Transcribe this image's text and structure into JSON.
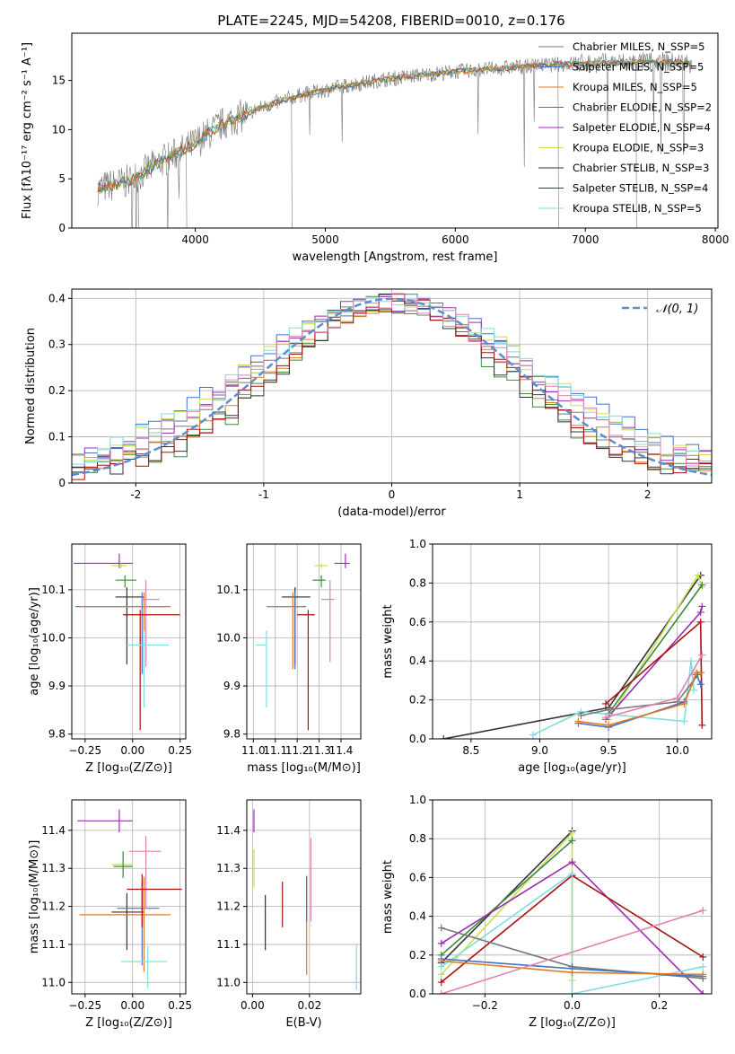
{
  "colors": {
    "chabrier_miles": "#777777",
    "salpeter_miles": "#4472c4",
    "kroupa_miles": "#e07a20",
    "chabrier_elodie": "#3c8a3c",
    "salpeter_elodie": "#9a2bb0",
    "kroupa_elodie": "#c8e050",
    "chabrier_stelib": "#333333",
    "salpeter_stelib": "#aa1010",
    "kroupa_stelib": "#80dde0",
    "pink": "#e080b0",
    "gaussian": "#5b8dd6"
  },
  "chart_data": [
    {
      "id": "spectrum",
      "type": "line",
      "title": "PLATE=2245, MJD=54208, FIBERID=0010, z=0.176",
      "xlabel": "wavelength [Angstrom, rest frame]",
      "ylabel": "Flux [fλ10⁻¹⁷ erg cm⁻² s⁻¹ A⁻¹]",
      "xlim": [
        3050,
        8020
      ],
      "ylim": [
        0,
        19.8
      ],
      "xticks": [
        4000,
        5000,
        6000,
        7000,
        8000
      ],
      "yticks": [
        0,
        5,
        10,
        15
      ],
      "data_range": [
        3250,
        7820
      ],
      "continuum": {
        "x": [
          3250,
          3500,
          3700,
          3950,
          4200,
          4500,
          4800,
          5100,
          5400,
          5700,
          6000,
          6300,
          6600,
          6900,
          7200,
          7500,
          7820
        ],
        "y": [
          4.0,
          4.8,
          6.5,
          8.2,
          10.5,
          12.2,
          13.5,
          14.3,
          15.0,
          15.5,
          15.9,
          16.2,
          16.5,
          16.7,
          16.8,
          16.9,
          16.8
        ]
      },
      "legend_position": "top-right",
      "legend": [
        {
          "label": "Chabrier MILES, N_SSP=5",
          "color_key": "chabrier_miles"
        },
        {
          "label": "Salpeter MILES, N_SSP=5",
          "color_key": "salpeter_miles"
        },
        {
          "label": "Kroupa MILES, N_SSP=5",
          "color_key": "kroupa_miles"
        },
        {
          "label": "Chabrier ELODIE, N_SSP=2",
          "color_key": "chabrier_elodie"
        },
        {
          "label": "Salpeter ELODIE, N_SSP=4",
          "color_key": "salpeter_elodie"
        },
        {
          "label": "Kroupa ELODIE, N_SSP=3",
          "color_key": "kroupa_elodie"
        },
        {
          "label": "Chabrier STELIB, N_SSP=3",
          "color_key": "chabrier_stelib"
        },
        {
          "label": "Salpeter STELIB, N_SSP=4",
          "color_key": "salpeter_stelib"
        },
        {
          "label": "Kroupa STELIB, N_SSP=5",
          "color_key": "kroupa_stelib"
        }
      ]
    },
    {
      "id": "residuals",
      "type": "line",
      "xlabel": "(data-model)/error",
      "ylabel": "Normed distribution",
      "xlim": [
        -2.5,
        2.5
      ],
      "ylim": [
        0,
        0.42
      ],
      "xticks": [
        -2,
        -1,
        0,
        1,
        2
      ],
      "yticks": [
        0.0,
        0.1,
        0.2,
        0.3,
        0.4
      ],
      "bin_width": 0.1,
      "gaussian_label": "𝒩(0, 1)",
      "series_colors": [
        "chabrier_miles",
        "salpeter_miles",
        "kroupa_miles",
        "chabrier_elodie",
        "salpeter_elodie",
        "kroupa_elodie",
        "chabrier_stelib",
        "salpeter_stelib",
        "kroupa_stelib",
        "pink"
      ]
    },
    {
      "id": "age_vs_Z",
      "type": "scatter",
      "xlabel": "Z [log₁₀(Z/Z⊙)]",
      "ylabel": "age  [log₁₀(age/yr)]",
      "xlim": [
        -0.32,
        0.28
      ],
      "ylim": [
        9.79,
        10.195
      ],
      "xticks": [
        -0.25,
        0.0,
        0.25
      ],
      "xticklabels": [
        "−0.25",
        "0.00",
        "0.25"
      ],
      "yticks": [
        9.8,
        9.9,
        10.0,
        10.1
      ],
      "yticklabels": [
        "9.8",
        "9.9",
        "10.0",
        "10.1"
      ],
      "points": [
        {
          "x": -0.07,
          "xerr": [
            0.24,
            0.07
          ],
          "y": 10.155,
          "yerr": [
            0.01,
            0.02
          ],
          "color_key": "salpeter_elodie"
        },
        {
          "x": -0.06,
          "xerr": [
            0.05,
            0.03
          ],
          "y": 10.15,
          "yerr": [
            0.005,
            0.005
          ],
          "color_key": "kroupa_elodie"
        },
        {
          "x": -0.04,
          "xerr": [
            0.05,
            0.06
          ],
          "y": 10.12,
          "yerr": [
            0.015,
            0.01
          ],
          "color_key": "chabrier_elodie"
        },
        {
          "x": -0.03,
          "xerr": [
            0.06,
            0.09
          ],
          "y": 10.085,
          "yerr": [
            0.14,
            0.02
          ],
          "color_key": "chabrier_stelib"
        },
        {
          "x": 0.05,
          "xerr": [
            0.35,
            0.14
          ],
          "y": 10.065,
          "yerr": [
            0.14,
            0.03
          ],
          "color_key": "salpeter_miles"
        },
        {
          "x": 0.06,
          "xerr": [
            0.34,
            0.14
          ],
          "y": 10.065,
          "yerr": [
            0.14,
            0.03
          ],
          "color_key": "kroupa_miles"
        },
        {
          "x": 0.07,
          "xerr": [
            0.02,
            0.07
          ],
          "y": 10.08,
          "yerr": [
            0.14,
            0.04
          ],
          "color_key": "pink"
        },
        {
          "x": 0.04,
          "xerr": [
            0.09,
            0.21
          ],
          "y": 10.048,
          "yerr": [
            0.24,
            0.01
          ],
          "color_key": "salpeter_stelib"
        },
        {
          "x": 0.06,
          "xerr": [
            0.09,
            0.13
          ],
          "y": 9.985,
          "yerr": [
            0.13,
            0.03
          ],
          "color_key": "kroupa_stelib"
        }
      ]
    },
    {
      "id": "age_vs_mass",
      "type": "scatter",
      "xlabel": "mass [log₁₀(M/M⊙)]",
      "ylabel": "",
      "xlim": [
        10.97,
        11.49
      ],
      "ylim": [
        9.79,
        10.195
      ],
      "xticks": [
        11.0,
        11.1,
        11.2,
        11.3,
        11.4
      ],
      "xticklabels": [
        "11.0",
        "11.1",
        "11.2",
        "11.3",
        "11.4"
      ],
      "yticks": [
        9.8,
        9.9,
        10.0,
        10.1
      ],
      "yticklabels": [
        "9.8",
        "9.9",
        "10.0",
        "10.1"
      ],
      "points": [
        {
          "x": 11.42,
          "xerr": [
            0.05,
            0.02
          ],
          "y": 10.155,
          "yerr": [
            0.01,
            0.02
          ],
          "color_key": "salpeter_elodie"
        },
        {
          "x": 11.31,
          "xerr": [
            0.03,
            0.03
          ],
          "y": 10.15,
          "yerr": [
            0.005,
            0.005
          ],
          "color_key": "kroupa_elodie"
        },
        {
          "x": 11.31,
          "xerr": [
            0.04,
            0.02
          ],
          "y": 10.12,
          "yerr": [
            0.015,
            0.01
          ],
          "color_key": "chabrier_elodie"
        },
        {
          "x": 11.19,
          "xerr": [
            0.06,
            0.07
          ],
          "y": 10.085,
          "yerr": [
            0.14,
            0.02
          ],
          "color_key": "chabrier_stelib"
        },
        {
          "x": 11.19,
          "xerr": [
            0.12,
            0.05
          ],
          "y": 10.065,
          "yerr": [
            0.13,
            0.03
          ],
          "color_key": "salpeter_miles"
        },
        {
          "x": 11.18,
          "xerr": [
            0.12,
            0.05
          ],
          "y": 10.065,
          "yerr": [
            0.13,
            0.03
          ],
          "color_key": "kroupa_miles"
        },
        {
          "x": 11.35,
          "xerr": [
            0.04,
            0.02
          ],
          "y": 10.08,
          "yerr": [
            0.13,
            0.04
          ],
          "color_key": "pink"
        },
        {
          "x": 11.25,
          "xerr": [
            0.05,
            0.03
          ],
          "y": 10.048,
          "yerr": [
            0.24,
            0.01
          ],
          "color_key": "salpeter_stelib"
        },
        {
          "x": 11.06,
          "xerr": [
            0.05,
            0.0
          ],
          "y": 9.985,
          "yerr": [
            0.13,
            0.03
          ],
          "color_key": "kroupa_stelib"
        }
      ]
    },
    {
      "id": "weight_vs_age",
      "type": "line",
      "xlabel": "age  [log₁₀(age/yr)]",
      "ylabel": "mass weight",
      "xlim": [
        8.22,
        10.25
      ],
      "ylim": [
        0,
        1.0
      ],
      "xticks": [
        8.5,
        9.0,
        9.5,
        10.0
      ],
      "xticklabels": [
        "8.5",
        "9.0",
        "9.5",
        "10.0"
      ],
      "yticks": [
        0,
        0.2,
        0.4,
        0.6,
        0.8,
        1.0
      ],
      "yticklabels": [
        "0.0",
        "0.2",
        "0.4",
        "0.6",
        "0.8",
        "1.0"
      ],
      "series": [
        {
          "color_key": "chabrier_stelib",
          "x": [
            8.3,
            9.5,
            10.17
          ],
          "y": [
            0.0,
            0.16,
            0.84
          ]
        },
        {
          "color_key": "kroupa_elodie",
          "x": [
            9.5,
            10.15,
            10.18
          ],
          "y": [
            0.1,
            0.84,
            0.78
          ]
        },
        {
          "color_key": "chabrier_elodie",
          "x": [
            9.5,
            10.18
          ],
          "y": [
            0.13,
            0.79
          ]
        },
        {
          "color_key": "salpeter_elodie",
          "x": [
            9.48,
            10.17,
            10.18
          ],
          "y": [
            0.1,
            0.65,
            0.68
          ]
        },
        {
          "color_key": "salpeter_stelib",
          "x": [
            9.48,
            10.17,
            10.18
          ],
          "y": [
            0.18,
            0.6,
            0.07
          ]
        },
        {
          "color_key": "kroupa_stelib",
          "x": [
            8.95,
            9.3,
            10.05,
            10.1,
            10.12
          ],
          "y": [
            0.02,
            0.14,
            0.09,
            0.4,
            0.25
          ]
        },
        {
          "color_key": "chabrier_miles",
          "x": [
            9.3,
            9.5,
            10.0,
            10.15
          ],
          "y": [
            0.12,
            0.15,
            0.19,
            0.33
          ]
        },
        {
          "color_key": "salpeter_miles",
          "x": [
            9.28,
            9.5,
            10.05,
            10.14,
            10.17
          ],
          "y": [
            0.08,
            0.06,
            0.19,
            0.33,
            0.28
          ]
        },
        {
          "color_key": "kroupa_miles",
          "x": [
            9.28,
            9.5,
            10.05,
            10.14,
            10.17
          ],
          "y": [
            0.09,
            0.07,
            0.18,
            0.34,
            0.34
          ]
        },
        {
          "color_key": "pink",
          "x": [
            9.48,
            10.0,
            10.18
          ],
          "y": [
            0.11,
            0.21,
            0.43
          ]
        }
      ]
    },
    {
      "id": "mass_vs_Z",
      "type": "scatter",
      "xlabel": "Z [log₁₀(Z/Z⊙)]",
      "ylabel": "mass [log₁₀(M/M⊙)]",
      "xlim": [
        -0.32,
        0.28
      ],
      "ylim": [
        10.97,
        11.48
      ],
      "xticks": [
        -0.25,
        0.0,
        0.25
      ],
      "xticklabels": [
        "−0.25",
        "0.00",
        "0.25"
      ],
      "yticks": [
        11.0,
        11.1,
        11.2,
        11.3,
        11.4
      ],
      "yticklabels": [
        "11.0",
        "11.1",
        "11.2",
        "11.3",
        "11.4"
      ],
      "points": [
        {
          "x": -0.07,
          "xerr": [
            0.22,
            0.07
          ],
          "y": 11.425,
          "yerr": [
            0.03,
            0.03
          ],
          "color_key": "salpeter_elodie"
        },
        {
          "x": -0.05,
          "xerr": [
            0.06,
            0.05
          ],
          "y": 11.31,
          "yerr": [
            0.03,
            0.03
          ],
          "color_key": "kroupa_elodie"
        },
        {
          "x": -0.05,
          "xerr": [
            0.05,
            0.05
          ],
          "y": 11.305,
          "yerr": [
            0.03,
            0.04
          ],
          "color_key": "chabrier_elodie"
        },
        {
          "x": -0.03,
          "xerr": [
            0.08,
            0.09
          ],
          "y": 11.185,
          "yerr": [
            0.1,
            0.05
          ],
          "color_key": "chabrier_stelib"
        },
        {
          "x": 0.05,
          "xerr": [
            0.13,
            0.09
          ],
          "y": 11.195,
          "yerr": [
            0.15,
            0.07
          ],
          "color_key": "salpeter_miles"
        },
        {
          "x": 0.06,
          "xerr": [
            0.34,
            0.14
          ],
          "y": 11.178,
          "yerr": [
            0.15,
            0.1
          ],
          "color_key": "kroupa_miles"
        },
        {
          "x": 0.07,
          "xerr": [
            0.09,
            0.08
          ],
          "y": 11.345,
          "yerr": [
            0.15,
            0.04
          ],
          "color_key": "pink"
        },
        {
          "x": 0.05,
          "xerr": [
            0.08,
            0.21
          ],
          "y": 11.245,
          "yerr": [
            0.1,
            0.04
          ],
          "color_key": "salpeter_stelib"
        },
        {
          "x": 0.08,
          "xerr": [
            0.14,
            0.1
          ],
          "y": 11.055,
          "yerr": [
            0.07,
            0.04
          ],
          "color_key": "kroupa_stelib"
        }
      ]
    },
    {
      "id": "mass_vs_ebv",
      "type": "scatter",
      "xlabel": "E(B-V)",
      "ylabel": "",
      "xlim": [
        -0.002,
        0.038
      ],
      "ylim": [
        10.97,
        11.48
      ],
      "xticks": [
        0.0,
        0.02
      ],
      "xticklabels": [
        "0.00",
        "0.02"
      ],
      "yticks": [
        11.0,
        11.1,
        11.2,
        11.3,
        11.4
      ],
      "yticklabels": [
        "11.0",
        "11.1",
        "11.2",
        "11.3",
        "11.4"
      ],
      "points": [
        {
          "x": 0.0005,
          "y": 11.425,
          "yerr": [
            0.03,
            0.03
          ],
          "color_key": "salpeter_elodie"
        },
        {
          "x": 0.0005,
          "y": 11.31,
          "yerr": [
            0.06,
            0.04
          ],
          "color_key": "kroupa_elodie"
        },
        {
          "x": 0.0045,
          "y": 11.155,
          "yerr": [
            0.07,
            0.075
          ],
          "color_key": "chabrier_stelib"
        },
        {
          "x": 0.0105,
          "y": 11.205,
          "yerr": [
            0.06,
            0.06
          ],
          "color_key": "salpeter_stelib"
        },
        {
          "x": 0.019,
          "y": 11.15,
          "yerr": [
            0.13,
            0.13
          ],
          "color_key": "kroupa_miles"
        },
        {
          "x": 0.019,
          "y": 11.22,
          "yerr": [
            0.06,
            0.06
          ],
          "color_key": "salpeter_miles"
        },
        {
          "x": 0.0205,
          "y": 11.27,
          "yerr": [
            0.11,
            0.11
          ],
          "color_key": "pink"
        },
        {
          "x": 0.0365,
          "y": 11.04,
          "yerr": [
            0.06,
            0.06
          ],
          "color_key": "kroupa_stelib"
        }
      ]
    },
    {
      "id": "weight_vs_Z",
      "type": "line",
      "xlabel": "Z [log₁₀(Z/Z⊙)]",
      "ylabel": "mass weight",
      "xlim": [
        -0.32,
        0.32
      ],
      "ylim": [
        0,
        1.0
      ],
      "xticks": [
        -0.2,
        0.0,
        0.2
      ],
      "xticklabels": [
        "−0.2",
        "0.0",
        "0.2"
      ],
      "yticks": [
        0,
        0.2,
        0.4,
        0.6,
        0.8,
        1.0
      ],
      "yticklabels": [
        "0.0",
        "0.2",
        "0.4",
        "0.6",
        "0.8",
        "1.0"
      ],
      "series": [
        {
          "color_key": "chabrier_stelib",
          "x": [
            -0.3,
            0.0
          ],
          "y": [
            0.16,
            0.84
          ]
        },
        {
          "color_key": "kroupa_elodie",
          "x": [
            -0.3,
            0.0,
            0.0
          ],
          "y": [
            0.1,
            0.83,
            0.07
          ]
        },
        {
          "color_key": "chabrier_elodie",
          "x": [
            -0.3,
            0.0
          ],
          "y": [
            0.2,
            0.79
          ]
        },
        {
          "color_key": "salpeter_elodie",
          "x": [
            -0.3,
            0.0,
            0.3
          ],
          "y": [
            0.26,
            0.68,
            0.0
          ]
        },
        {
          "color_key": "salpeter_stelib",
          "x": [
            -0.3,
            0.0,
            0.3
          ],
          "y": [
            0.06,
            0.61,
            0.19
          ]
        },
        {
          "color_key": "kroupa_stelib",
          "x": [
            -0.3,
            0.0,
            0.0,
            0.3
          ],
          "y": [
            0.14,
            0.62,
            0.0,
            0.14
          ]
        },
        {
          "color_key": "chabrier_miles",
          "x": [
            -0.3,
            0.0,
            0.3
          ],
          "y": [
            0.34,
            0.14,
            0.08
          ]
        },
        {
          "color_key": "salpeter_miles",
          "x": [
            -0.3,
            0.0,
            0.3
          ],
          "y": [
            0.18,
            0.13,
            0.09
          ]
        },
        {
          "color_key": "kroupa_miles",
          "x": [
            -0.3,
            0.0,
            0.3
          ],
          "y": [
            0.17,
            0.11,
            0.1
          ]
        },
        {
          "color_key": "pink",
          "x": [
            -0.3,
            0.3
          ],
          "y": [
            0.0,
            0.43
          ]
        }
      ]
    }
  ]
}
